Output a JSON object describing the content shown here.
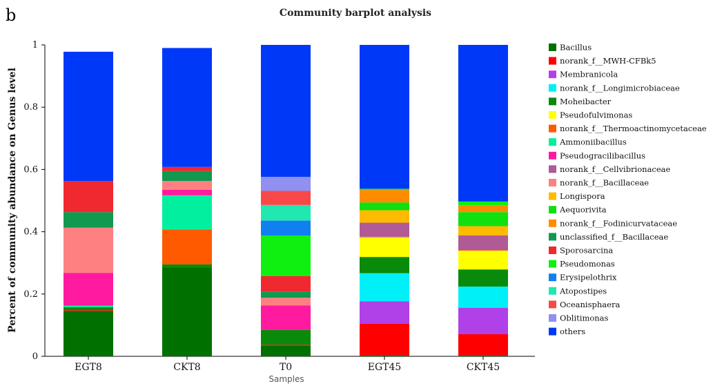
{
  "panel_letter": "b",
  "chart_data": {
    "type": "bar",
    "stacked": true,
    "title": "Community barplot analysis",
    "xlabel": "Samples",
    "ylabel": "Percent of community abundance on Genus level",
    "ylim": [
      0,
      1
    ],
    "yticks": [
      "0",
      "0.2",
      "0.4",
      "0.6",
      "0.8",
      "1"
    ],
    "legend_position": "right",
    "categories": [
      "EGT8",
      "CKT8",
      "T0",
      "EGT45",
      "CKT45"
    ],
    "series": [
      {
        "name": "Bacillus",
        "color": "#007000",
        "values": [
          0.145,
          0.285,
          0.035,
          0.004,
          0.004
        ]
      },
      {
        "name": "norank_f__MWH-CFBk5",
        "color": "#ff0000",
        "values": [
          0.003,
          0.0,
          0.002,
          0.101,
          0.067
        ]
      },
      {
        "name": "Membranicola",
        "color": "#b040e8",
        "values": [
          0.0,
          0.0,
          0.0,
          0.072,
          0.085
        ]
      },
      {
        "name": "norank_f__Longimicrobiaceae",
        "color": "#00f0f8",
        "values": [
          0.0,
          0.0,
          0.0,
          0.09,
          0.068
        ]
      },
      {
        "name": "Moheibacter",
        "color": "#0a8a0a",
        "values": [
          0.01,
          0.01,
          0.048,
          0.052,
          0.055
        ]
      },
      {
        "name": "Pseudofulvimonas",
        "color": "#ffff00",
        "values": [
          0.0,
          0.0,
          0.0,
          0.063,
          0.06
        ]
      },
      {
        "name": "norank_f__Thermoactinomycetaceae",
        "color": "#ff5a00",
        "values": [
          0.0,
          0.112,
          0.0,
          0.002,
          0.002
        ]
      },
      {
        "name": "Ammoniibacillus",
        "color": "#00f0a0",
        "values": [
          0.005,
          0.11,
          0.0,
          0.0,
          0.0
        ]
      },
      {
        "name": "Pseudogracilibacillus",
        "color": "#ff1aa0",
        "values": [
          0.105,
          0.018,
          0.078,
          0.0,
          0.0
        ]
      },
      {
        "name": "norank_f__Cellvibrionaceae",
        "color": "#b05a96",
        "values": [
          0.0,
          0.0,
          0.0,
          0.045,
          0.047
        ]
      },
      {
        "name": "norank_f__Bacillaceae",
        "color": "#ff8080",
        "values": [
          0.145,
          0.028,
          0.025,
          0.0,
          0.0
        ]
      },
      {
        "name": "Longispora",
        "color": "#ffbb00",
        "values": [
          0.0,
          0.0,
          0.0,
          0.04,
          0.03
        ]
      },
      {
        "name": "Aequorivita",
        "color": "#10e010",
        "values": [
          0.0,
          0.0,
          0.0,
          0.025,
          0.045
        ]
      },
      {
        "name": "norank_f__Fodinicurvataceae",
        "color": "#ff8c00",
        "values": [
          0.0,
          0.0,
          0.0,
          0.04,
          0.022
        ]
      },
      {
        "name": "unclassified_f__Bacillaceae",
        "color": "#119950",
        "values": [
          0.05,
          0.032,
          0.02,
          0.0,
          0.0
        ]
      },
      {
        "name": "Sporosarcina",
        "color": "#f0282f",
        "values": [
          0.1,
          0.013,
          0.05,
          0.0,
          0.0
        ]
      },
      {
        "name": "Pseudomonas",
        "color": "#10f010",
        "values": [
          0.0,
          0.0,
          0.13,
          0.004,
          0.012
        ]
      },
      {
        "name": "Erysipelothrix",
        "color": "#1080f0",
        "values": [
          0.0,
          0.0,
          0.048,
          0.0,
          0.0
        ]
      },
      {
        "name": "Atopostipes",
        "color": "#20e8b0",
        "values": [
          0.0,
          0.0,
          0.05,
          0.0,
          0.0
        ]
      },
      {
        "name": "Oceanisphaera",
        "color": "#f84848",
        "values": [
          0.0,
          0.0,
          0.045,
          0.0,
          0.0
        ]
      },
      {
        "name": "Oblitimonas",
        "color": "#9090f0",
        "values": [
          0.0,
          0.0,
          0.045,
          0.0,
          0.0
        ]
      },
      {
        "name": "others",
        "color": "#0038f8",
        "values": [
          0.415,
          0.382,
          0.424,
          0.462,
          0.503
        ]
      }
    ]
  }
}
